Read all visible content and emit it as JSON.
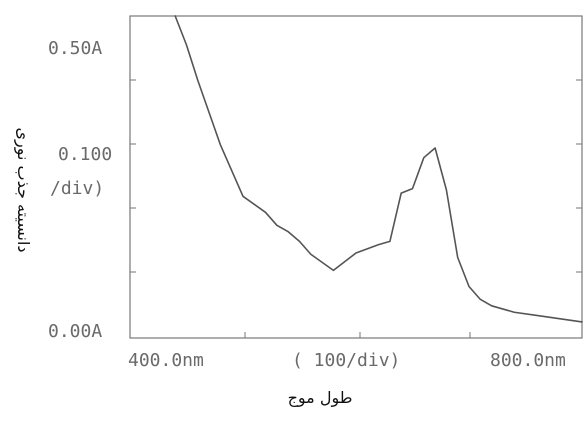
{
  "chart_data": {
    "type": "line",
    "title": "",
    "xlabel": "طول موج",
    "ylabel": "دانسیته جذب نوری",
    "xlim": [
      400,
      800
    ],
    "ylim": [
      0,
      0.5
    ],
    "x_tick_labels": {
      "left": "400.0nm",
      "middle": "( 100/div)",
      "right": "800.0nm"
    },
    "y_tick_labels": {
      "top": "0.50A",
      "middle_line1": "0.100",
      "middle_line2": "/div)",
      "bottom": "0.00A"
    },
    "grid": false,
    "series": [
      {
        "x": [
          440,
          450,
          460,
          470,
          480,
          500,
          520,
          530,
          540,
          550,
          560,
          580,
          600,
          620,
          630,
          640,
          650,
          660,
          670,
          680,
          690,
          700,
          710,
          720,
          740,
          760,
          780,
          800
        ],
        "y": [
          0.5,
          0.455,
          0.4,
          0.35,
          0.3,
          0.22,
          0.195,
          0.175,
          0.165,
          0.15,
          0.13,
          0.105,
          0.132,
          0.145,
          0.15,
          0.225,
          0.232,
          0.28,
          0.295,
          0.23,
          0.125,
          0.08,
          0.06,
          0.05,
          0.04,
          0.035,
          0.03,
          0.025
        ]
      }
    ]
  }
}
